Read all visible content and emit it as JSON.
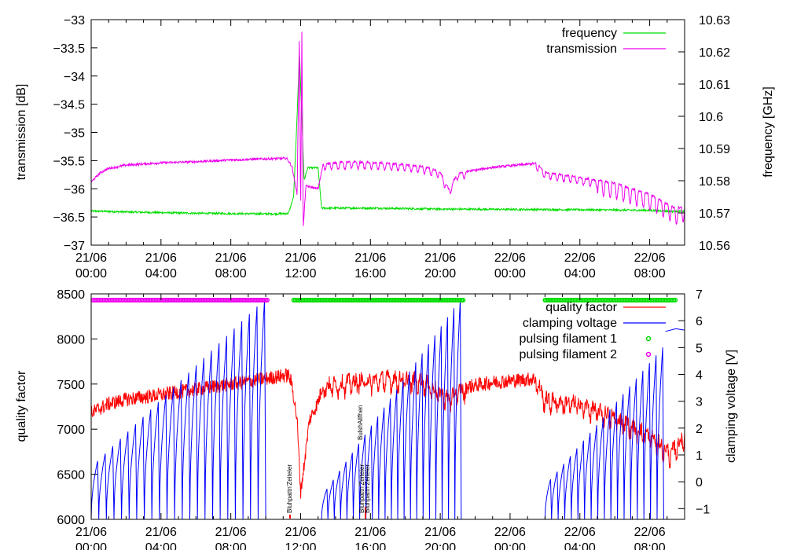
{
  "chart_data": [
    {
      "type": "line",
      "ylabel": "transmission [dB]",
      "y2label": "frequency [GHz]",
      "xlim": [
        0,
        34
      ],
      "ylim": [
        -37,
        -33
      ],
      "y2lim": [
        10.56,
        10.63
      ],
      "x_ticks": [
        {
          "value": 0,
          "date": "21/06",
          "time": "00:00"
        },
        {
          "value": 4,
          "date": "21/06",
          "time": "04:00"
        },
        {
          "value": 8,
          "date": "21/06",
          "time": "08:00"
        },
        {
          "value": 12,
          "date": "21/06",
          "time": "12:00"
        },
        {
          "value": 16,
          "date": "21/06",
          "time": "16:00"
        },
        {
          "value": 20,
          "date": "21/06",
          "time": "20:00"
        },
        {
          "value": 24,
          "date": "22/06",
          "time": "00:00"
        },
        {
          "value": 28,
          "date": "22/06",
          "time": "04:00"
        },
        {
          "value": 32,
          "date": "22/06",
          "time": "08:00"
        }
      ],
      "y_ticks": [
        {
          "value": -33,
          "label": "−33"
        },
        {
          "value": -33.5,
          "label": "−33.5"
        },
        {
          "value": -34,
          "label": "−34"
        },
        {
          "value": -34.5,
          "label": "−34.5"
        },
        {
          "value": -35,
          "label": "−35"
        },
        {
          "value": -35.5,
          "label": "−35.5"
        },
        {
          "value": -36,
          "label": "−36"
        },
        {
          "value": -36.5,
          "label": "−36.5"
        },
        {
          "value": -37,
          "label": "−37"
        }
      ],
      "y2_ticks": [
        {
          "value": 10.56,
          "label": "10.56"
        },
        {
          "value": 10.57,
          "label": "10.57"
        },
        {
          "value": 10.58,
          "label": "10.58"
        },
        {
          "value": 10.59,
          "label": "10.59"
        },
        {
          "value": 10.6,
          "label": "10.6"
        },
        {
          "value": 10.61,
          "label": "10.61"
        },
        {
          "value": 10.62,
          "label": "10.62"
        },
        {
          "value": 10.63,
          "label": "10.63"
        }
      ],
      "legend_position": "top-right",
      "series": [
        {
          "name": "frequency",
          "axis": "y2",
          "color": "#00dd00",
          "points": [
            [
              0,
              10.5706
            ],
            [
              2,
              10.5703
            ],
            [
              4,
              10.5701
            ],
            [
              6,
              10.5699
            ],
            [
              8,
              10.5698
            ],
            [
              10,
              10.5697
            ],
            [
              11.3,
              10.5698
            ],
            [
              11.6,
              10.575
            ],
            [
              11.8,
              10.6
            ],
            [
              11.93,
              10.62
            ],
            [
              12.07,
              10.6
            ],
            [
              12.2,
              10.58
            ],
            [
              12.4,
              10.584
            ],
            [
              13,
              10.584
            ],
            [
              13.2,
              10.5715
            ],
            [
              16,
              10.5715
            ],
            [
              20,
              10.5712
            ],
            [
              24,
              10.5711
            ],
            [
              28,
              10.571
            ],
            [
              32,
              10.5708
            ],
            [
              33.3,
              10.5705
            ],
            [
              34,
              10.5705
            ]
          ]
        },
        {
          "name": "transmission",
          "axis": "y",
          "color": "#ee00ee",
          "points": [
            [
              0,
              -35.88
            ],
            [
              0.5,
              -35.72
            ],
            [
              1,
              -35.64
            ],
            [
              2,
              -35.58
            ],
            [
              4,
              -35.54
            ],
            [
              6,
              -35.52
            ],
            [
              8,
              -35.49
            ],
            [
              10,
              -35.47
            ],
            [
              11.2,
              -35.46
            ],
            [
              11.5,
              -35.6
            ],
            [
              11.8,
              -36.1
            ],
            [
              11.93,
              -33.2
            ],
            [
              12.0,
              -36.5
            ],
            [
              12.07,
              -33.2
            ],
            [
              12.15,
              -36.7
            ],
            [
              12.3,
              -35.95
            ],
            [
              13,
              -36.0
            ],
            [
              13.3,
              -35.55
            ],
            [
              15,
              -35.52
            ],
            [
              17,
              -35.55
            ],
            [
              19,
              -35.6
            ],
            [
              20,
              -35.7
            ],
            [
              20.5,
              -36.02
            ],
            [
              21,
              -35.72
            ],
            [
              23,
              -35.62
            ],
            [
              25.5,
              -35.55
            ],
            [
              26,
              -35.7
            ],
            [
              28,
              -35.8
            ],
            [
              30,
              -35.9
            ],
            [
              32,
              -36.1
            ],
            [
              33.5,
              -36.35
            ],
            [
              34,
              -36.3
            ]
          ]
        }
      ]
    },
    {
      "type": "line",
      "ylabel": "quality factor",
      "y2label": "clamping voltage [V]",
      "xlim": [
        0,
        34
      ],
      "ylim": [
        6000,
        8500
      ],
      "y2lim": [
        -1.4,
        7
      ],
      "x_ticks": [
        {
          "value": 0,
          "date": "21/06",
          "time": "00:00"
        },
        {
          "value": 4,
          "date": "21/06",
          "time": "04:00"
        },
        {
          "value": 8,
          "date": "21/06",
          "time": "08:00"
        },
        {
          "value": 12,
          "date": "21/06",
          "time": "12:00"
        },
        {
          "value": 16,
          "date": "21/06",
          "time": "16:00"
        },
        {
          "value": 20,
          "date": "21/06",
          "time": "20:00"
        },
        {
          "value": 24,
          "date": "22/06",
          "time": "00:00"
        },
        {
          "value": 28,
          "date": "22/06",
          "time": "04:00"
        },
        {
          "value": 32,
          "date": "22/06",
          "time": "08:00"
        }
      ],
      "y_ticks": [
        {
          "value": 6000,
          "label": "6000"
        },
        {
          "value": 6500,
          "label": "6500"
        },
        {
          "value": 7000,
          "label": "7000"
        },
        {
          "value": 7500,
          "label": "7500"
        },
        {
          "value": 8000,
          "label": "8000"
        },
        {
          "value": 8500,
          "label": "8500"
        }
      ],
      "y2_ticks": [
        {
          "value": -1,
          "label": "−1"
        },
        {
          "value": 0,
          "label": "0"
        },
        {
          "value": 1,
          "label": "1"
        },
        {
          "value": 2,
          "label": "2"
        },
        {
          "value": 3,
          "label": "3"
        },
        {
          "value": 4,
          "label": "4"
        },
        {
          "value": 5,
          "label": "5"
        },
        {
          "value": 6,
          "label": "6"
        },
        {
          "value": 7,
          "label": "7"
        }
      ],
      "legend_position": "top-right",
      "series": [
        {
          "name": "quality factor",
          "axis": "y",
          "color": "#ff0000",
          "points": [
            [
              0,
              7180
            ],
            [
              1,
              7280
            ],
            [
              2,
              7330
            ],
            [
              4,
              7380
            ],
            [
              6,
              7440
            ],
            [
              8,
              7500
            ],
            [
              10,
              7560
            ],
            [
              11.3,
              7600
            ],
            [
              11.5,
              7500
            ],
            [
              11.8,
              7100
            ],
            [
              12.0,
              6300
            ],
            [
              12.2,
              6600
            ],
            [
              12.5,
              7100
            ],
            [
              13,
              7300
            ],
            [
              13.3,
              7500
            ],
            [
              15,
              7550
            ],
            [
              17,
              7580
            ],
            [
              19,
              7560
            ],
            [
              20.5,
              7350
            ],
            [
              21,
              7450
            ],
            [
              23,
              7520
            ],
            [
              25.5,
              7560
            ],
            [
              26,
              7350
            ],
            [
              28,
              7300
            ],
            [
              30,
              7150
            ],
            [
              32,
              6950
            ],
            [
              33.2,
              6750
            ],
            [
              34,
              6950
            ]
          ]
        },
        {
          "name": "clamping voltage",
          "axis": "y2",
          "color": "#0000ff",
          "segments": [
            {
              "start": 0,
              "end": 10,
              "v_start": 0.5,
              "v_end": 6.8,
              "cycles": 23
            },
            {
              "start": 13.2,
              "end": 21.2,
              "v_start": -0.6,
              "v_end": 6.8,
              "cycles": 22
            },
            {
              "start": 26,
              "end": 32.8,
              "v_start": -0.2,
              "v_end": 5.0,
              "cycles": 18
            }
          ],
          "tail": [
            [
              32.9,
              5.6
            ],
            [
              33.5,
              5.7
            ],
            [
              34,
              5.65
            ]
          ]
        },
        {
          "name": "pulsing filament 1",
          "axis": "y",
          "color": "#00dd00",
          "marker": "circle",
          "y": 8430,
          "ranges": [
            [
              11.6,
              21.4
            ],
            [
              26,
              33.5
            ]
          ]
        },
        {
          "name": "pulsing filament 2",
          "axis": "y",
          "color": "#ee00ee",
          "marker": "circle",
          "y": 8430,
          "ranges": [
            [
              0.1,
              10.1
            ]
          ]
        }
      ]
    }
  ]
}
